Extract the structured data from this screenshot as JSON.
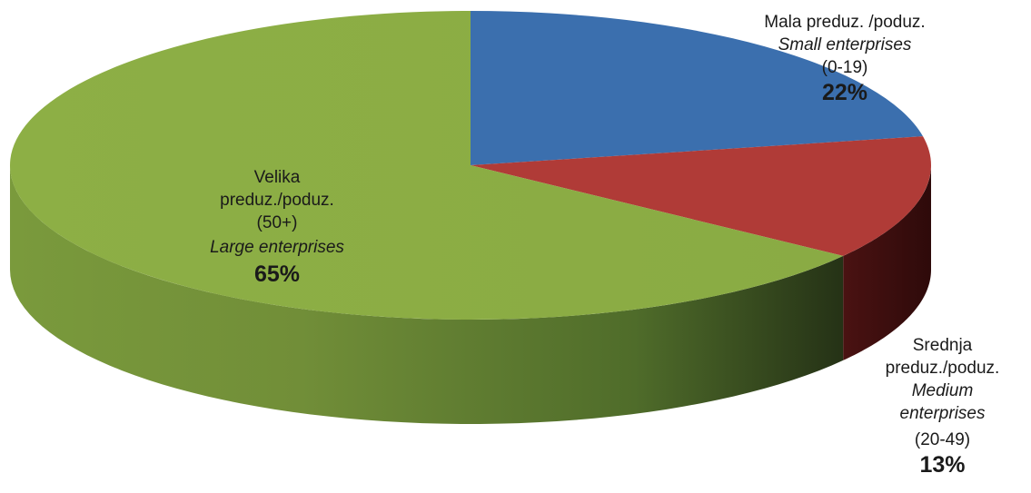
{
  "chart_data": {
    "type": "pie",
    "style": "3d",
    "title": "",
    "slices": [
      {
        "label_lines": [
          "Mala preduz. /poduz."
        ],
        "label_en": "Small enterprises",
        "range": "(0-19)",
        "value": 22,
        "display": "22%",
        "color": "#3B6FAE"
      },
      {
        "label_lines": [
          "Srednja",
          "preduz./poduz."
        ],
        "label_en_lines": [
          "Medium",
          "enterprises"
        ],
        "range": "(20-49)",
        "value": 13,
        "display": "13%",
        "color": "#B03B37"
      },
      {
        "label_lines": [
          "Velika",
          "preduz./poduz."
        ],
        "range": "(50+)",
        "label_en": "Large enterprises",
        "value": 65,
        "display": "65%",
        "color": "#8CAE45"
      }
    ]
  }
}
